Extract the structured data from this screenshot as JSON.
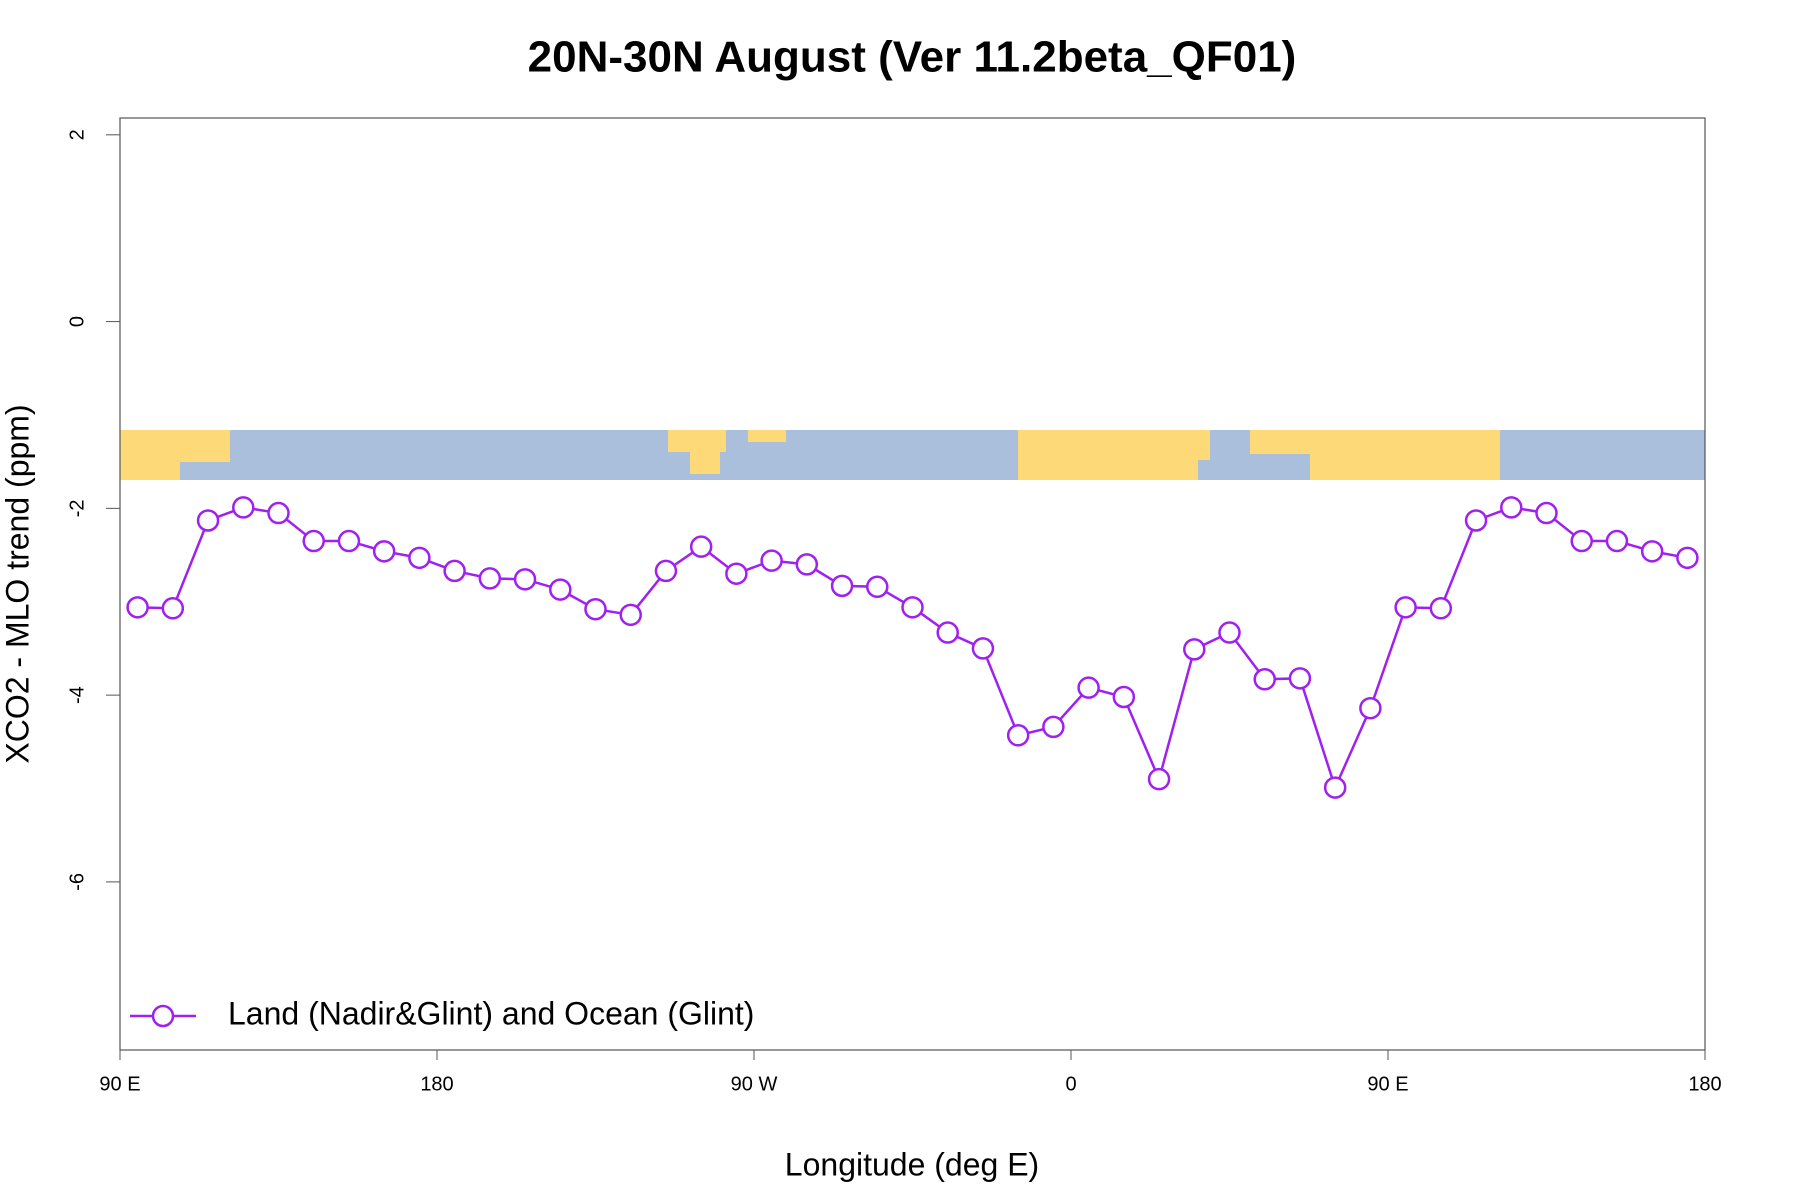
{
  "chart_data": {
    "type": "line",
    "title": "20N-30N August (Ver 11.2beta_QF01)",
    "x_label": "Longitude (deg E)",
    "y_label": "XCO2 - MLO trend (ppm)",
    "xlim": [
      90,
      540
    ],
    "ylim": [
      -7.8,
      2.18
    ],
    "xticks": [
      {
        "value": 90,
        "label": "90 E"
      },
      {
        "value": 180,
        "label": "180"
      },
      {
        "value": 270,
        "label": "90 W"
      },
      {
        "value": 360,
        "label": "0"
      },
      {
        "value": 450,
        "label": "90 E"
      },
      {
        "value": 540,
        "label": "180"
      }
    ],
    "yticks": [
      2,
      0,
      -2,
      -4,
      -6
    ],
    "legend": "bottomleft",
    "series": [
      {
        "name": "Land (Nadir&Glint) and Ocean (Glint)",
        "color": "#a020f0",
        "x": [
          95,
          105,
          115,
          125,
          135,
          145,
          155,
          165,
          175,
          185,
          195,
          205,
          215,
          225,
          235,
          245,
          255,
          265,
          275,
          285,
          295,
          305,
          315,
          325,
          335,
          345,
          355,
          365,
          375,
          385,
          395,
          405,
          415,
          425,
          435,
          445,
          455,
          465,
          475,
          485,
          495,
          505,
          515,
          525,
          535
        ],
        "values": [
          -3.06,
          -3.07,
          -2.13,
          -1.99,
          -2.05,
          -2.35,
          -2.35,
          -2.46,
          -2.53,
          -2.67,
          -2.75,
          -2.76,
          -2.87,
          -3.08,
          -3.14,
          -2.67,
          -2.41,
          -2.7,
          -2.56,
          -2.6,
          -2.83,
          -2.84,
          -3.06,
          -3.33,
          -3.5,
          -4.43,
          -4.34,
          -3.92,
          -4.02,
          -4.9,
          -3.51,
          -3.33,
          -3.83,
          -3.82,
          -4.99,
          -4.14,
          -3.06,
          -3.07,
          -2.13,
          -1.99,
          -2.05,
          -2.35,
          -2.35,
          -2.46,
          -2.53
        ]
      }
    ]
  }
}
